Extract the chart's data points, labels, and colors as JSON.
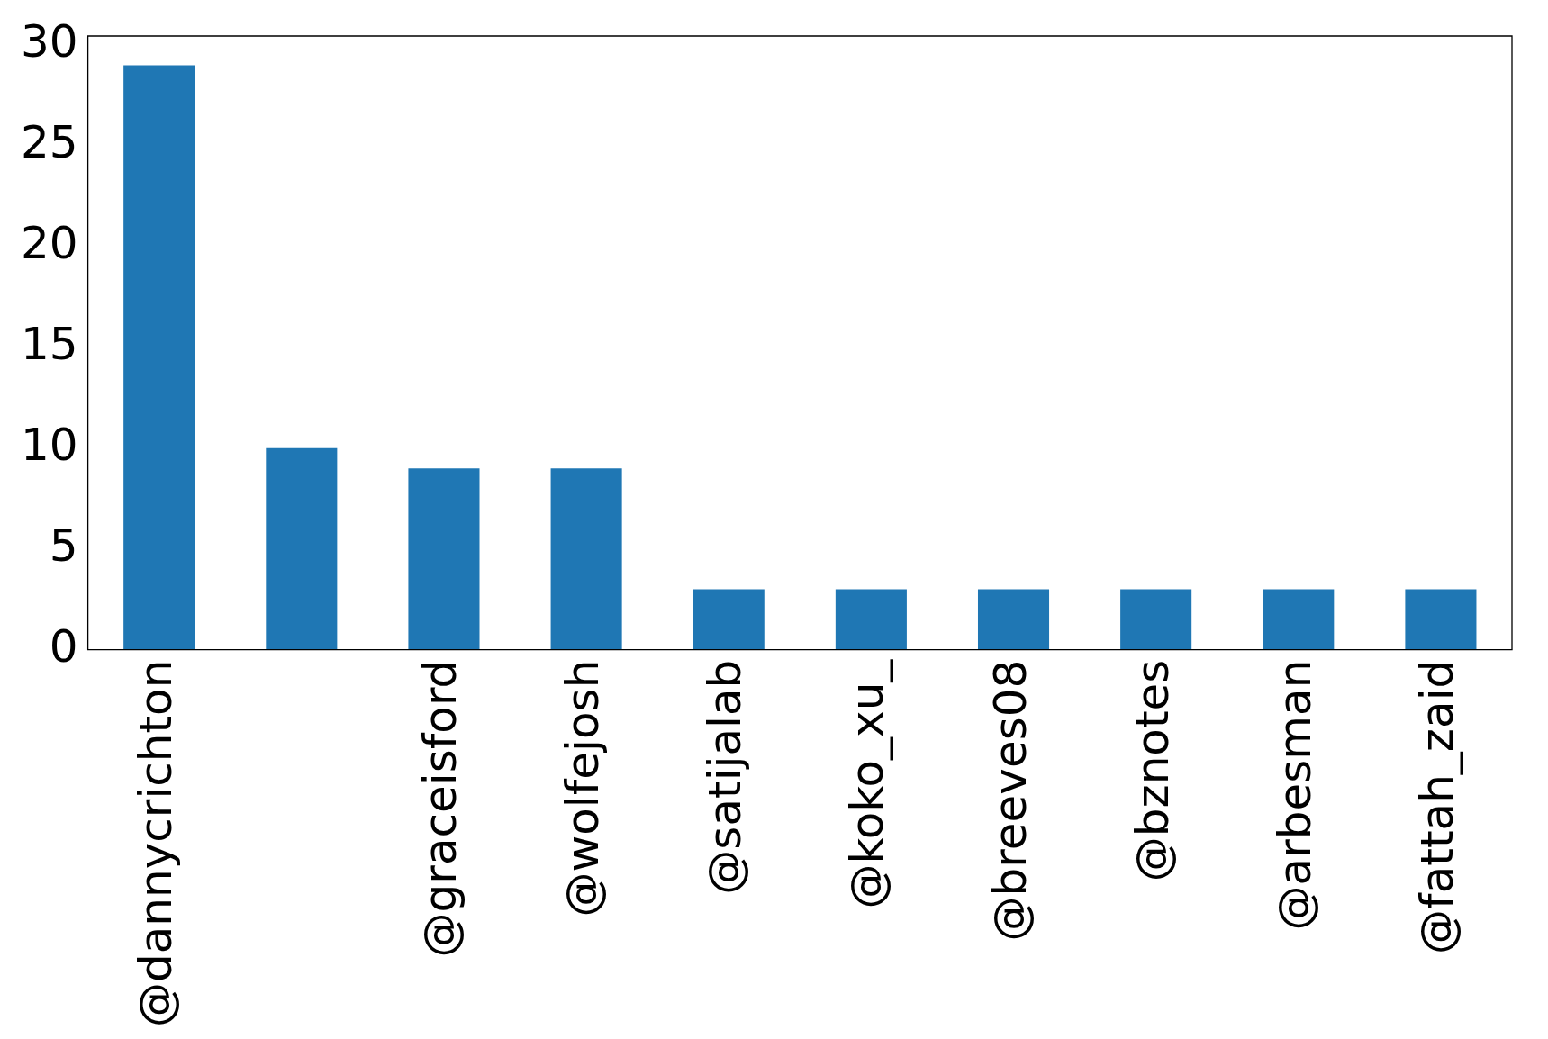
{
  "chart_data": {
    "type": "bar",
    "categories": [
      "@dannycrichton",
      null,
      "@graceisford",
      "@wolfejosh",
      "@satijalab",
      "@koko_xu_",
      "@breeves08",
      "@bznotes",
      "@arbesman",
      "@fattah_zaid"
    ],
    "values": [
      29,
      10,
      9,
      9,
      3,
      3,
      3,
      3,
      3,
      3
    ],
    "color": "#1f77b4",
    "ylim": [
      0,
      30.45
    ],
    "yticks": [
      0,
      5,
      10,
      15,
      20,
      25,
      30
    ],
    "grid": false,
    "legend": false
  }
}
